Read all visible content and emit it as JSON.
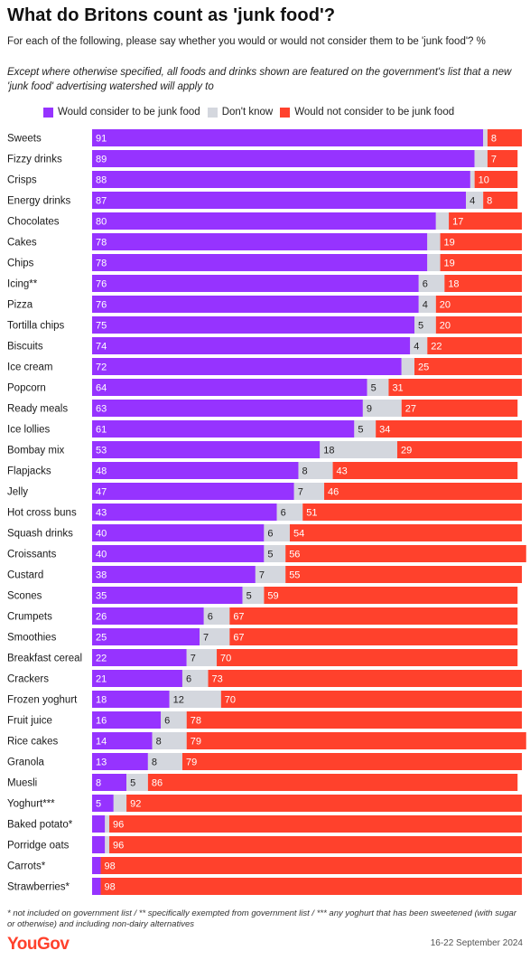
{
  "title": "What do Britons count as 'junk food'?",
  "subtitle": "For each of the following, please say whether you would or would not consider them to be 'junk food'? %",
  "note": "Except where otherwise specified, all foods and drinks shown are featured on the government's list that a new 'junk food' advertising watershed will apply to",
  "footnote": "* not included on government list / ** specifically exempted from government list / *** any yoghurt that has been sweetened (with sugar or otherwise) and including non-dairy alternatives",
  "logo": "YouGov",
  "date": "16-22 September 2024",
  "colors": {
    "junk": "#9633ff",
    "dont_know": "#d4d7de",
    "not_junk": "#ff412c"
  },
  "chart_data": {
    "type": "bar",
    "orientation": "horizontal",
    "stacked": true,
    "title": "What do Britons count as 'junk food'?",
    "legend_position": "top",
    "xlim": [
      0,
      100
    ],
    "categories": [
      "Sweets",
      "Fizzy drinks",
      "Crisps",
      "Energy drinks",
      "Chocolates",
      "Cakes",
      "Chips",
      "Icing**",
      "Pizza",
      "Tortilla chips",
      "Biscuits",
      "Ice cream",
      "Popcorn",
      "Ready meals",
      "Ice lollies",
      "Bombay mix",
      "Flapjacks",
      "Jelly",
      "Hot cross buns",
      "Squash drinks",
      "Croissants",
      "Custard",
      "Scones",
      "Crumpets",
      "Smoothies",
      "Breakfast cereal",
      "Crackers",
      "Frozen yoghurt",
      "Fruit juice",
      "Rice cakes",
      "Granola",
      "Muesli",
      "Yoghurt***",
      "Baked potato*",
      "Porridge oats",
      "Carrots*",
      "Strawberries*"
    ],
    "series": [
      {
        "name": "Would consider to be junk food",
        "color": "#9633ff",
        "values": [
          91,
          89,
          88,
          87,
          80,
          78,
          78,
          76,
          76,
          75,
          74,
          72,
          64,
          63,
          61,
          53,
          48,
          47,
          43,
          40,
          40,
          38,
          35,
          26,
          25,
          22,
          21,
          18,
          16,
          14,
          13,
          8,
          5,
          3,
          3,
          2,
          2
        ]
      },
      {
        "name": "Don't know",
        "color": "#d4d7de",
        "values": [
          1,
          3,
          1,
          4,
          3,
          3,
          3,
          6,
          4,
          5,
          4,
          3,
          5,
          9,
          5,
          18,
          8,
          7,
          6,
          6,
          5,
          7,
          5,
          6,
          7,
          7,
          6,
          12,
          6,
          8,
          8,
          5,
          3,
          1,
          1,
          0,
          0
        ]
      },
      {
        "name": "Would not consider to be junk food",
        "color": "#ff412c",
        "values": [
          8,
          7,
          10,
          8,
          17,
          19,
          19,
          18,
          20,
          20,
          22,
          25,
          31,
          27,
          34,
          29,
          43,
          46,
          51,
          54,
          56,
          55,
          59,
          67,
          67,
          70,
          73,
          70,
          78,
          79,
          79,
          86,
          92,
          96,
          96,
          98,
          98
        ]
      }
    ],
    "value_labels": [
      [
        91,
        null,
        8
      ],
      [
        89,
        null,
        7
      ],
      [
        88,
        null,
        10
      ],
      [
        87,
        4,
        8
      ],
      [
        80,
        null,
        17
      ],
      [
        78,
        null,
        19
      ],
      [
        78,
        null,
        19
      ],
      [
        76,
        6,
        18
      ],
      [
        76,
        4,
        20
      ],
      [
        75,
        5,
        20
      ],
      [
        74,
        4,
        22
      ],
      [
        72,
        null,
        25
      ],
      [
        64,
        5,
        31
      ],
      [
        63,
        9,
        27
      ],
      [
        61,
        5,
        34
      ],
      [
        53,
        18,
        29
      ],
      [
        48,
        8,
        43
      ],
      [
        47,
        7,
        46
      ],
      [
        43,
        6,
        51
      ],
      [
        40,
        6,
        54
      ],
      [
        40,
        5,
        56
      ],
      [
        38,
        7,
        55
      ],
      [
        35,
        5,
        59
      ],
      [
        26,
        6,
        67
      ],
      [
        25,
        7,
        67
      ],
      [
        22,
        7,
        70
      ],
      [
        21,
        6,
        73
      ],
      [
        18,
        12,
        70
      ],
      [
        16,
        6,
        78
      ],
      [
        14,
        8,
        79
      ],
      [
        13,
        8,
        79
      ],
      [
        8,
        5,
        86
      ],
      [
        5,
        null,
        92
      ],
      [
        null,
        null,
        96
      ],
      [
        null,
        null,
        96
      ],
      [
        null,
        null,
        98
      ],
      [
        null,
        null,
        98
      ]
    ]
  }
}
